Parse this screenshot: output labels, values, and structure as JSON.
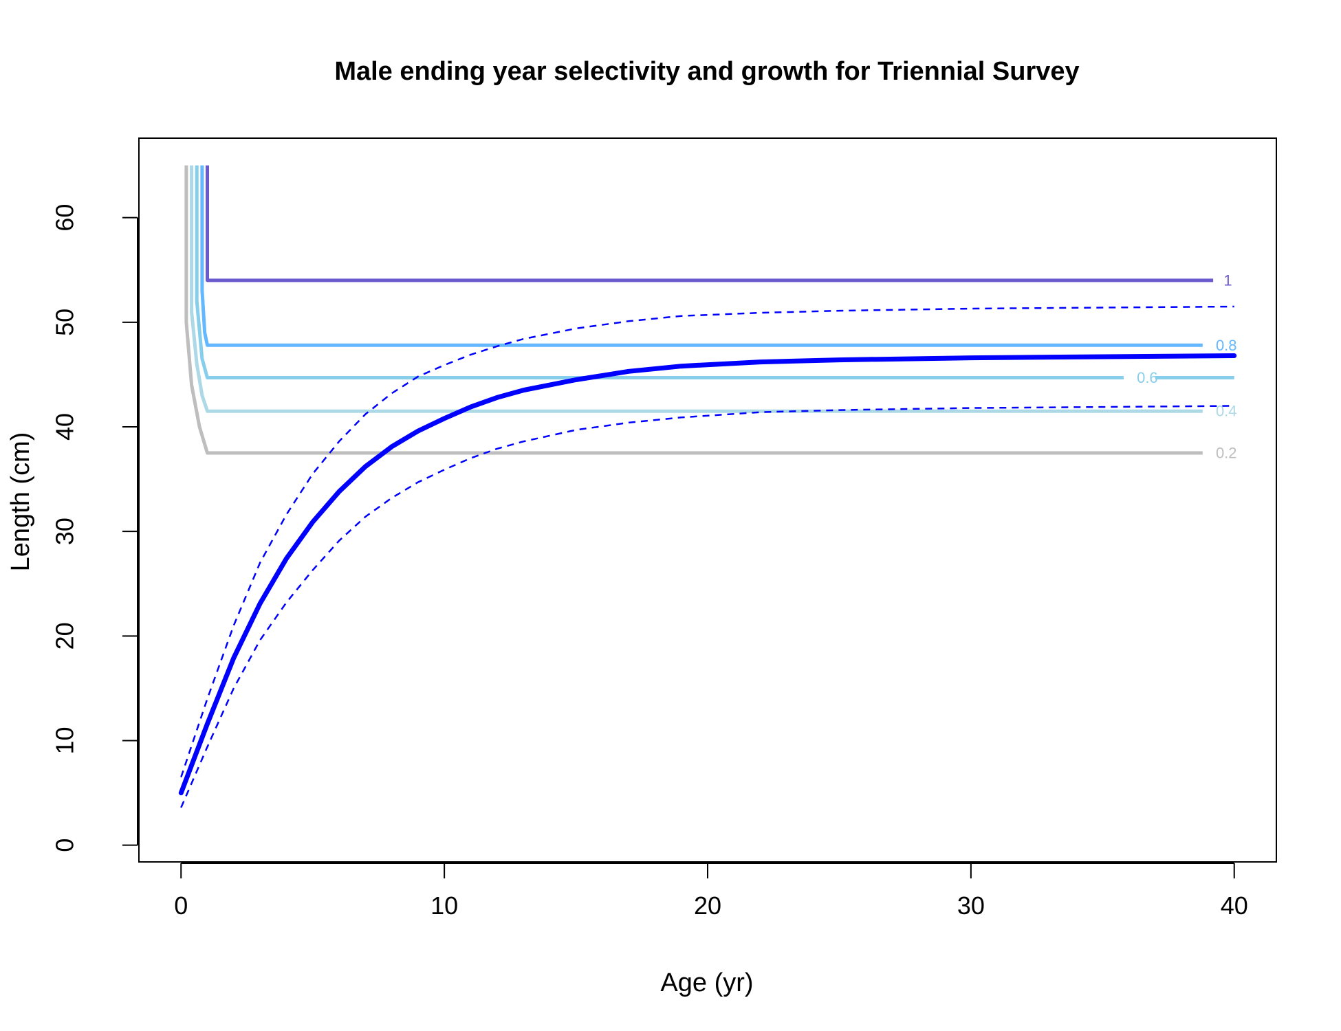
{
  "chart_data": {
    "type": "line",
    "title": "Male ending year selectivity and growth for Triennial Survey",
    "xlabel": "Age (yr)",
    "ylabel": "Length (cm)",
    "xlim": [
      -1.6,
      41.6
    ],
    "ylim": [
      -1.6,
      67.6
    ],
    "x_ticks": [
      0,
      10,
      20,
      30,
      40
    ],
    "y_ticks": [
      0,
      10,
      20,
      30,
      40,
      50,
      60
    ],
    "grid": false,
    "growth": {
      "color": "#0000ff",
      "mean": [
        [
          0,
          5.0
        ],
        [
          1,
          11.6
        ],
        [
          2,
          17.9
        ],
        [
          3,
          23.1
        ],
        [
          4,
          27.4
        ],
        [
          5,
          30.9
        ],
        [
          6,
          33.8
        ],
        [
          7,
          36.2
        ],
        [
          8,
          38.1
        ],
        [
          9,
          39.6
        ],
        [
          10,
          40.8
        ],
        [
          11,
          41.9
        ],
        [
          12,
          42.8
        ],
        [
          13,
          43.5
        ],
        [
          15,
          44.5
        ],
        [
          17,
          45.3
        ],
        [
          19,
          45.8
        ],
        [
          22,
          46.2
        ],
        [
          25,
          46.4
        ],
        [
          30,
          46.6
        ],
        [
          35,
          46.7
        ],
        [
          40,
          46.8
        ]
      ],
      "upper": [
        [
          0,
          6.5
        ],
        [
          1,
          14.0
        ],
        [
          2,
          21.0
        ],
        [
          3,
          27.0
        ],
        [
          4,
          31.6
        ],
        [
          5,
          35.5
        ],
        [
          6,
          38.6
        ],
        [
          7,
          41.2
        ],
        [
          8,
          43.2
        ],
        [
          9,
          44.8
        ],
        [
          10,
          45.9
        ],
        [
          11,
          46.9
        ],
        [
          12,
          47.7
        ],
        [
          13,
          48.4
        ],
        [
          15,
          49.4
        ],
        [
          17,
          50.1
        ],
        [
          19,
          50.6
        ],
        [
          22,
          50.9
        ],
        [
          25,
          51.1
        ],
        [
          30,
          51.3
        ],
        [
          35,
          51.4
        ],
        [
          40,
          51.5
        ]
      ],
      "lower": [
        [
          0,
          3.6
        ],
        [
          1,
          9.4
        ],
        [
          2,
          15.0
        ],
        [
          3,
          19.6
        ],
        [
          4,
          23.2
        ],
        [
          5,
          26.3
        ],
        [
          6,
          29.1
        ],
        [
          7,
          31.4
        ],
        [
          8,
          33.2
        ],
        [
          9,
          34.7
        ],
        [
          10,
          35.9
        ],
        [
          11,
          37.0
        ],
        [
          12,
          37.9
        ],
        [
          13,
          38.6
        ],
        [
          15,
          39.7
        ],
        [
          17,
          40.4
        ],
        [
          19,
          40.9
        ],
        [
          22,
          41.4
        ],
        [
          25,
          41.6
        ],
        [
          30,
          41.8
        ],
        [
          35,
          41.9
        ],
        [
          40,
          42.0
        ]
      ]
    },
    "contours": [
      {
        "label": "0.2",
        "level": 0.2,
        "color": "#bebebe",
        "length": 37.5,
        "x_end": 38.8,
        "label_x": 39.3,
        "vertical": [
          [
            0.2,
            65
          ],
          [
            0.2,
            50
          ],
          [
            0.4,
            44
          ],
          [
            0.7,
            40
          ],
          [
            1.0,
            37.5
          ]
        ]
      },
      {
        "label": "0.4",
        "level": 0.4,
        "color": "#add8e6",
        "length": 41.5,
        "x_end": 38.8,
        "label_x": 39.3,
        "vertical": [
          [
            0.4,
            65
          ],
          [
            0.4,
            51
          ],
          [
            0.6,
            46
          ],
          [
            0.8,
            43
          ],
          [
            1.0,
            41.5
          ]
        ]
      },
      {
        "label": "0.6",
        "level": 0.6,
        "color": "#87ceeb",
        "length": 44.7,
        "x_end": 35.8,
        "label_x": 36.3,
        "x_resume": 37.0,
        "x_resume_end": 40.0,
        "vertical": [
          [
            0.6,
            65
          ],
          [
            0.6,
            52
          ],
          [
            0.8,
            46.5
          ],
          [
            1.0,
            44.7
          ]
        ]
      },
      {
        "label": "0.8",
        "level": 0.8,
        "color": "#63b8ff",
        "length": 47.8,
        "x_end": 38.8,
        "label_x": 39.3,
        "vertical": [
          [
            0.8,
            65
          ],
          [
            0.8,
            53
          ],
          [
            0.9,
            49
          ],
          [
            1.0,
            47.8
          ]
        ]
      },
      {
        "label": "1",
        "level": 1.0,
        "color": "#6a5acd",
        "length": 54.0,
        "x_end": 39.2,
        "label_x": 39.6,
        "vertical": [
          [
            1.0,
            65
          ],
          [
            1.0,
            54.0
          ]
        ]
      }
    ]
  }
}
